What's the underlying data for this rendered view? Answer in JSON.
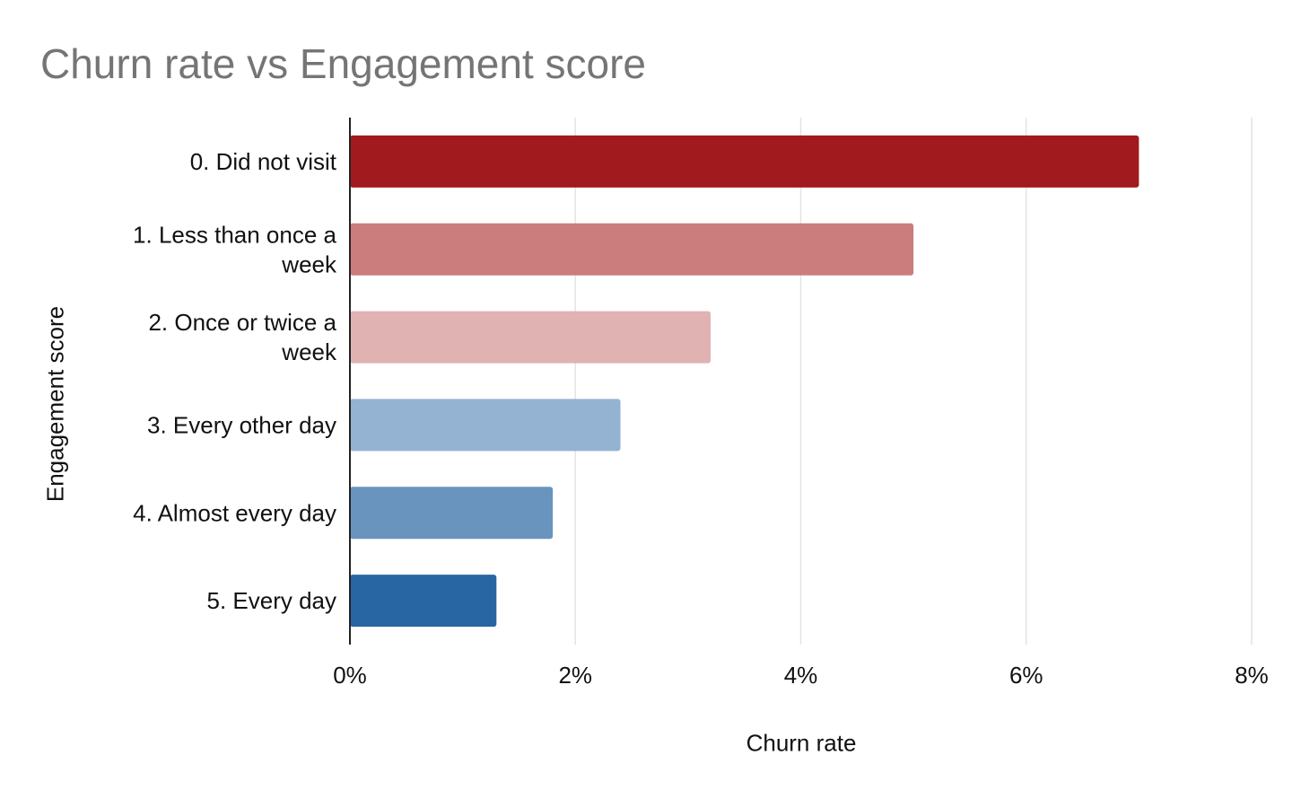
{
  "chart_data": {
    "type": "bar",
    "orientation": "horizontal",
    "title": "Churn rate vs Engagement score",
    "xlabel": "Churn rate",
    "ylabel": "Engagement score",
    "categories": [
      [
        "0. Did not visit"
      ],
      [
        "1. Less than once a",
        "week"
      ],
      [
        "2. Once or twice a",
        "week"
      ],
      [
        "3. Every other day"
      ],
      [
        "4. Almost every day"
      ],
      [
        "5. Every day"
      ]
    ],
    "values": [
      0.07,
      0.05,
      0.032,
      0.024,
      0.018,
      0.013
    ],
    "colors": [
      "#a11a1d",
      "#cb7c7c",
      "#e0b2b2",
      "#94b2d1",
      "#6894be",
      "#2865a3"
    ],
    "xlim": [
      0,
      0.08
    ],
    "xticks": [
      0,
      0.02,
      0.04,
      0.06,
      0.08
    ],
    "xtick_labels": [
      "0%",
      "2%",
      "4%",
      "6%",
      "8%"
    ],
    "grid": true,
    "legend": "none"
  }
}
